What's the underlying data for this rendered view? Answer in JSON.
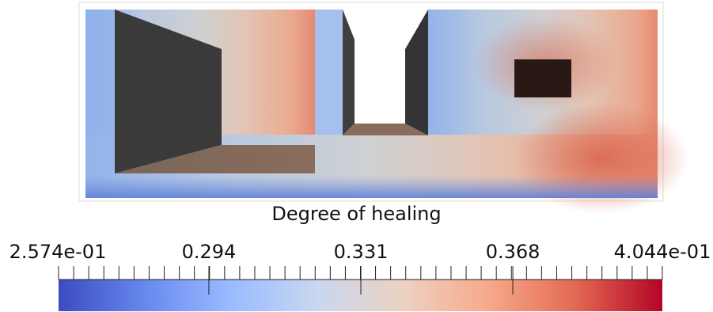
{
  "legend": {
    "title": "Degree of healing",
    "min_label": "2.574e-01",
    "max_label": "4.044e-01",
    "tick_labels": [
      "0.294",
      "0.331",
      "0.368"
    ],
    "range": [
      0.2574,
      0.4044
    ],
    "tick_values": [
      0.294,
      0.331,
      0.368
    ],
    "colormap": [
      "#3b4cc0",
      "#6788ee",
      "#9abbff",
      "#c9d7f0",
      "#edd1c2",
      "#f7a889",
      "#e26952",
      "#b40426"
    ]
  },
  "scene": {
    "background": "#ffffff",
    "structure_color": "#3a3a3a",
    "hole_color": "#2a1814"
  }
}
